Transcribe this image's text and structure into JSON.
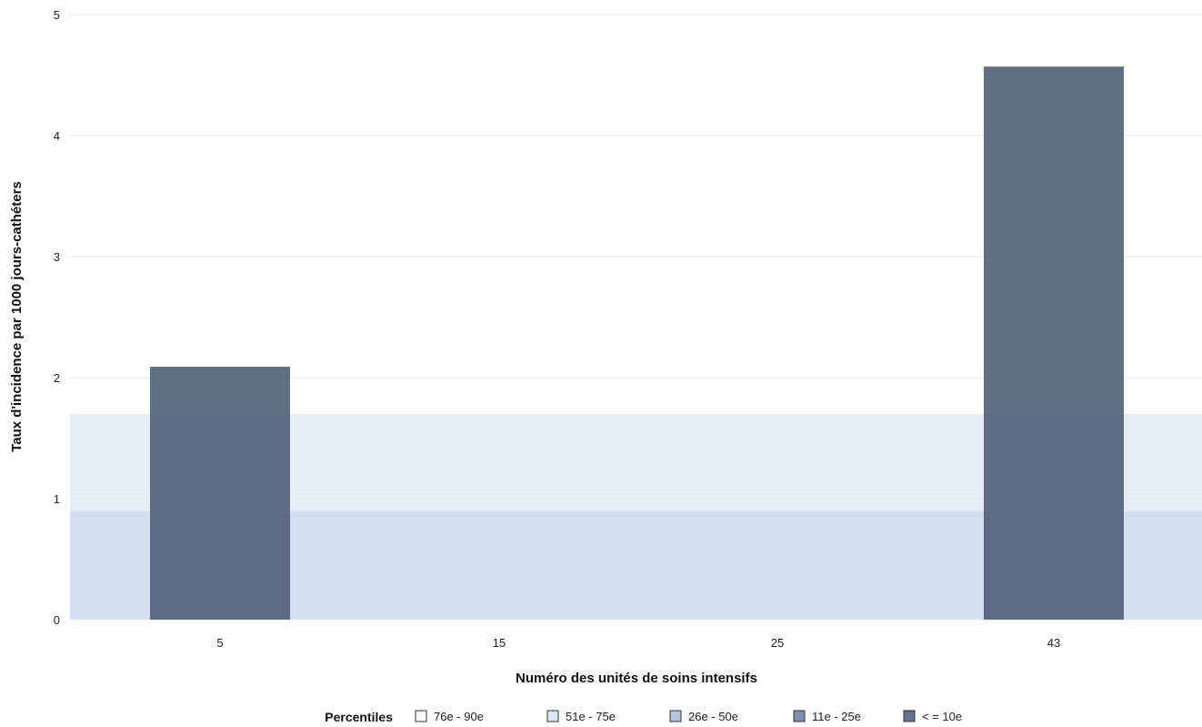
{
  "chart_data": {
    "type": "bar",
    "title": "",
    "xlabel": "Numéro des unités de soins intensifs",
    "ylabel": "Taux d'incidence par 1000 jours-cathéters",
    "ylim": [
      0,
      5
    ],
    "yticks": [
      0,
      1,
      2,
      3,
      4,
      5
    ],
    "categories": [
      "5",
      "15",
      "25",
      "43"
    ],
    "values": [
      2.09,
      0,
      0,
      4.57
    ],
    "bar_color": "#4b5b72",
    "grid": true,
    "percentile_bands": [
      {
        "from": 0,
        "to": 0.9,
        "color": "#d3deef"
      },
      {
        "from": 0.9,
        "to": 1.7,
        "color": "#e8eef7"
      }
    ],
    "legend": {
      "title": "Percentiles",
      "position": "bottom",
      "items": [
        {
          "label": "76e - 90e",
          "color": "#f7f9fc"
        },
        {
          "label": "51e - 75e",
          "color": "#dbe4f2"
        },
        {
          "label": "26e - 50e",
          "color": "#b4c4de"
        },
        {
          "label": "11e - 25e",
          "color": "#7c8fb1"
        },
        {
          "label": "< = 10e",
          "color": "#66758f"
        }
      ]
    }
  }
}
